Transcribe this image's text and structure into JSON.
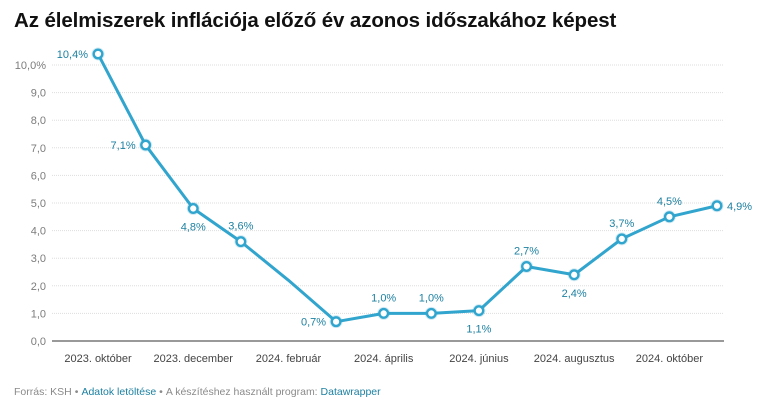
{
  "title": "Az élelmiszerek inflációja előző év azonos időszakához képest",
  "footer": {
    "source": "Forrás: KSH",
    "download_link": "Adatok letöltése",
    "tool_text": "A készítéshez használt program:",
    "tool_link": "Datawrapper",
    "separator": "•"
  },
  "colors": {
    "line": "#31a5cd",
    "label": "#1d81a2",
    "axis_text": "#7c7c7c",
    "grid": "#dddddd",
    "baseline": "#333333"
  },
  "chart_data": {
    "type": "line",
    "title": "Az élelmiszerek inflációja előző év azonos időszakához képest",
    "xlabel": "",
    "ylabel": "",
    "ylim": [
      0,
      10.4
    ],
    "y_ticks": [
      0,
      1,
      2,
      3,
      4,
      5,
      6,
      7,
      8,
      9,
      10
    ],
    "y_tick_labels": [
      "0,0",
      "1,0",
      "2,0",
      "3,0",
      "4,0",
      "5,0",
      "6,0",
      "7,0",
      "8,0",
      "9,0",
      "10,0%"
    ],
    "x_tick_labels": [
      "2023. október",
      "2023. december",
      "2024. február",
      "2024. április",
      "2024. június",
      "2024. augusztus",
      "2024. október"
    ],
    "x_tick_index": [
      0,
      2,
      4,
      6,
      8,
      10,
      12
    ],
    "periods": [
      "2023. október",
      "2023. november",
      "2023. december",
      "2024. január",
      "2024. február",
      "2024. március",
      "2024. április",
      "2024. május",
      "2024. június",
      "2024. július",
      "2024. augusztus",
      "2024. szeptember",
      "2024. október",
      "2024. november"
    ],
    "values": [
      10.4,
      7.1,
      4.8,
      3.6,
      2.2,
      0.7,
      1.0,
      1.0,
      1.1,
      2.7,
      2.4,
      3.7,
      4.5,
      4.9
    ],
    "data_labels": [
      "10,4%",
      "7,1%",
      "4,8%",
      "3,6%",
      "",
      "0,7%",
      "1,0%",
      "1,0%",
      "1,1%",
      "2,7%",
      "2,4%",
      "3,7%",
      "4,5%",
      "4,9%"
    ],
    "label_positions": [
      "left",
      "left",
      "below",
      "above",
      "none",
      "left",
      "above",
      "above",
      "below",
      "above",
      "below",
      "above",
      "above",
      "right"
    ],
    "markers": [
      true,
      true,
      true,
      true,
      false,
      true,
      true,
      true,
      true,
      true,
      true,
      true,
      true,
      true
    ]
  }
}
